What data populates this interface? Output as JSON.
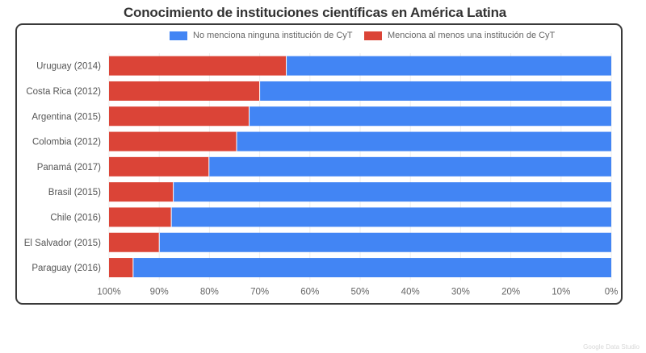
{
  "chart_data": {
    "type": "bar",
    "orientation": "horizontal",
    "stacked": true,
    "title": "Conocimiento de instituciones científicas en América Latina",
    "categories": [
      "Uruguay (2014)",
      "Costa Rica (2012)",
      "Argentina (2015)",
      "Colombia (2012)",
      "Panamá (2017)",
      "Brasil (2015)",
      "Chile (2016)",
      "El Salvador (2015)",
      "Paraguay (2016)"
    ],
    "series": [
      {
        "name": "No menciona ninguna institución de CyT",
        "color": "#4285f4",
        "values": [
          64.7,
          70.0,
          72.1,
          74.6,
          80.1,
          87.2,
          87.6,
          90.0,
          95.2
        ]
      },
      {
        "name": "Menciona al menos una institución de CyT",
        "color": "#db4437",
        "values": [
          35.3,
          30.0,
          27.9,
          25.4,
          19.9,
          12.8,
          12.4,
          10.0,
          4.8
        ]
      }
    ],
    "xlabel": "",
    "ylabel": "",
    "xlim": [
      100,
      0
    ],
    "x_ticks": [
      "100%",
      "90%",
      "80%",
      "70%",
      "60%",
      "50%",
      "40%",
      "30%",
      "20%",
      "10%",
      "0%"
    ],
    "grid": true,
    "legend_position": "top"
  },
  "watermark": "Google Data Studio"
}
